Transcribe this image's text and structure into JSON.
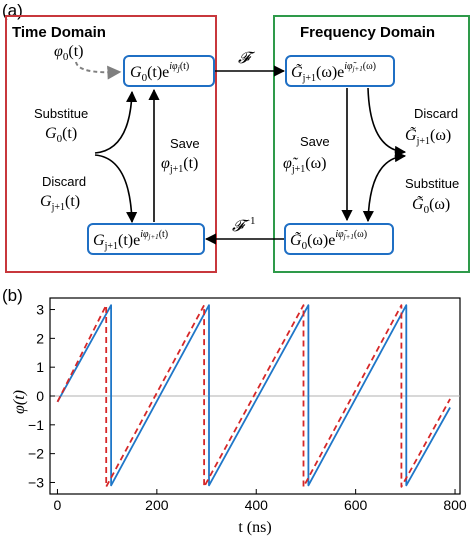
{
  "panel_a": {
    "panel_label": "(a)",
    "time_domain_title": "Time Domain",
    "frequency_domain_title": "Frequency Domain",
    "colors": {
      "time_box": "#c8373c",
      "freq_box": "#2e9a4a",
      "node_border": "#1f6fc4",
      "arrow": "#000000",
      "dashed_arrow": "#7f7f7f"
    },
    "nodes": {
      "g0_time": {
        "base": "G",
        "sub": "0",
        "arg": "(t)",
        "exp": "iφ",
        "exp_sub": "j",
        "exp_arg": "(t)"
      },
      "g_tilde_freq": {
        "base": "G̃",
        "sub": "j+1",
        "arg": "(ω)",
        "exp": "iφ̃",
        "exp_sub": "j+1",
        "exp_arg": "(ω)"
      },
      "g_time_bottom": {
        "base": "G",
        "sub": "j+1",
        "arg": "(t)",
        "exp": "iφ",
        "exp_sub": "j+1",
        "exp_arg": "(t)"
      },
      "g0_tilde_freq": {
        "base": "G̃",
        "sub": "0",
        "arg": "(ω)",
        "exp": "iφ̃",
        "exp_sub": "j+1",
        "exp_arg": "(ω)"
      }
    },
    "phi0_label": {
      "base": "φ",
      "sub": "0",
      "arg": "(t)"
    },
    "fourier_label": "𝓕",
    "inverse_fourier_label": {
      "base": "𝓕",
      "sup": "−1"
    },
    "left_labels": {
      "substitute_word": "Substitue",
      "substitute_symbol": {
        "base": "G",
        "sub": "0",
        "arg": "(t)"
      },
      "save_word": "Save",
      "save_symbol": {
        "base": "φ",
        "sub": "j+1",
        "arg": "(t)"
      },
      "discard_word": "Discard",
      "discard_symbol": {
        "base": "G",
        "sub": "j+1",
        "arg": "(t)"
      }
    },
    "right_labels": {
      "discard_word": "Discard",
      "discard_symbol": {
        "base": "G̃",
        "sub": "j+1",
        "arg": "(ω)"
      },
      "save_word": "Save",
      "save_symbol": {
        "base": "φ̃",
        "sub": "j+1",
        "arg": "(ω)"
      },
      "substitute_word": "Substitue",
      "substitute_symbol": {
        "base": "G̃",
        "sub": "0",
        "arg": "(ω)"
      }
    }
  },
  "panel_b": {
    "panel_label": "(b)",
    "chart_data": {
      "type": "line",
      "xlabel": "t (ns)",
      "ylabel": "φ(t)",
      "xlim": [
        -15,
        810
      ],
      "ylim": [
        -3.4,
        3.4
      ],
      "x_ticks": [
        0,
        200,
        400,
        600,
        800
      ],
      "y_ticks": [
        -3,
        -2,
        -1,
        0,
        1,
        2,
        3
      ],
      "zero_line": true,
      "grid": false,
      "legend": false,
      "series": [
        {
          "style": "solid",
          "color": "#1f77c8",
          "x": [
            0,
            108,
            108,
            305,
            305,
            505,
            505,
            702,
            702,
            790
          ],
          "y": [
            -0.2,
            3.15,
            -3.1,
            3.15,
            -3.1,
            3.15,
            -3.1,
            3.15,
            -3.1,
            -0.4
          ]
        },
        {
          "style": "dashed",
          "color": "#d62728",
          "x": [
            0,
            98,
            98,
            295,
            295,
            495,
            495,
            692,
            692,
            790
          ],
          "y": [
            -0.2,
            3.15,
            -3.15,
            3.15,
            -3.15,
            3.15,
            -3.15,
            3.15,
            -3.15,
            -0.1
          ]
        }
      ]
    }
  }
}
